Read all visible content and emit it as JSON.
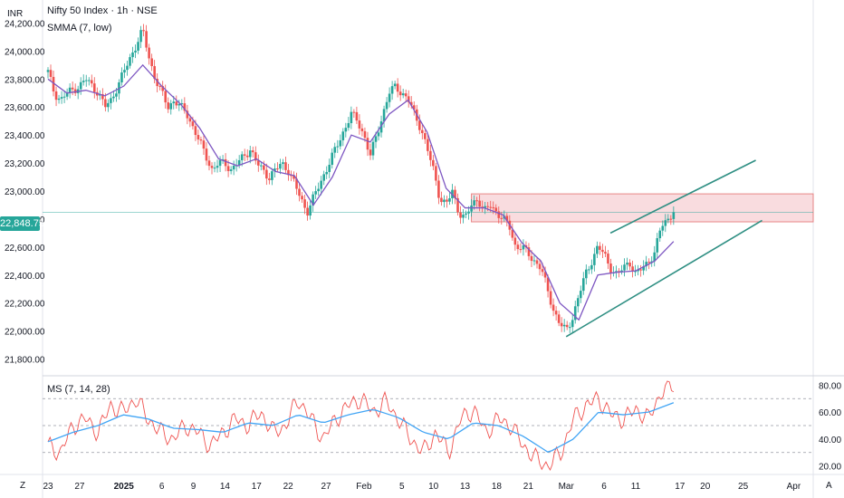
{
  "chart_title": "Nifty 50 Index · 1h · NSE",
  "indicator_label": "SMMA (7, low)",
  "oscillator_label": "MS (7, 14, 28)",
  "currency_label": "INR",
  "last_price_label": "22,848.75",
  "corner_left": "Z",
  "corner_right": "A",
  "colors": {
    "up": "#26a69a",
    "down": "#ef5350",
    "smma": "#7e57c2",
    "channel": "#2f8f83",
    "zone_fill": "#f8d7da",
    "zone_border": "#e57373",
    "osc_main": "#ef5350",
    "osc_signal": "#42a5f5",
    "price_line": "#26a69a"
  },
  "chart_data": [
    {
      "type": "candlestick",
      "title": "Nifty 50 Index · 1h · NSE",
      "ylabel": "INR",
      "ylim": [
        21700,
        24300
      ],
      "y_ticks": [
        "24,200.00",
        "24,000.00",
        "23,800.00",
        "23,600.00",
        "23,400.00",
        "23,200.00",
        "23,000.00",
        "22,800.00",
        "22,600.00",
        "22,400.00",
        "22,200.00",
        "22,000.00",
        "21,800.00"
      ],
      "y_tick_values": [
        24200,
        24000,
        23800,
        23600,
        23400,
        23200,
        23000,
        22800,
        22600,
        22400,
        22200,
        22000,
        21800
      ],
      "x_ticks": [
        "23",
        "27",
        "2025",
        "6",
        "9",
        "14",
        "17",
        "22",
        "27",
        "Feb",
        "5",
        "10",
        "13",
        "18",
        "21",
        "Mar",
        "6",
        "11",
        "17",
        "20",
        "25",
        "Apr"
      ],
      "x_tick_positions": [
        0,
        0.05,
        0.12,
        0.18,
        0.23,
        0.28,
        0.33,
        0.38,
        0.44,
        0.5,
        0.56,
        0.61,
        0.66,
        0.71,
        0.76,
        0.82,
        0.88,
        0.93,
        1.0,
        1.04,
        1.1,
        1.18
      ],
      "close_path": [
        [
          0,
          23850
        ],
        [
          0.01,
          23700
        ],
        [
          0.02,
          23650
        ],
        [
          0.03,
          23700
        ],
        [
          0.05,
          23750
        ],
        [
          0.06,
          23800
        ],
        [
          0.07,
          23750
        ],
        [
          0.08,
          23700
        ],
        [
          0.09,
          23600
        ],
        [
          0.1,
          23650
        ],
        [
          0.11,
          23750
        ],
        [
          0.12,
          23850
        ],
        [
          0.13,
          23950
        ],
        [
          0.14,
          24050
        ],
        [
          0.15,
          24150
        ],
        [
          0.16,
          23950
        ],
        [
          0.17,
          23800
        ],
        [
          0.18,
          23700
        ],
        [
          0.19,
          23600
        ],
        [
          0.2,
          23650
        ],
        [
          0.21,
          23600
        ],
        [
          0.22,
          23550
        ],
        [
          0.23,
          23450
        ],
        [
          0.24,
          23350
        ],
        [
          0.25,
          23250
        ],
        [
          0.26,
          23150
        ],
        [
          0.27,
          23200
        ],
        [
          0.28,
          23200
        ],
        [
          0.29,
          23150
        ],
        [
          0.3,
          23200
        ],
        [
          0.31,
          23250
        ],
        [
          0.32,
          23300
        ],
        [
          0.33,
          23200
        ],
        [
          0.34,
          23150
        ],
        [
          0.35,
          23100
        ],
        [
          0.36,
          23150
        ],
        [
          0.37,
          23200
        ],
        [
          0.38,
          23150
        ],
        [
          0.39,
          23050
        ],
        [
          0.4,
          22950
        ],
        [
          0.41,
          22850
        ],
        [
          0.42,
          22950
        ],
        [
          0.43,
          23050
        ],
        [
          0.44,
          23150
        ],
        [
          0.45,
          23250
        ],
        [
          0.46,
          23350
        ],
        [
          0.47,
          23450
        ],
        [
          0.48,
          23550
        ],
        [
          0.49,
          23500
        ],
        [
          0.5,
          23400
        ],
        [
          0.51,
          23250
        ],
        [
          0.52,
          23400
        ],
        [
          0.53,
          23550
        ],
        [
          0.54,
          23700
        ],
        [
          0.55,
          23750
        ],
        [
          0.56,
          23700
        ],
        [
          0.57,
          23650
        ],
        [
          0.58,
          23550
        ],
        [
          0.59,
          23450
        ],
        [
          0.6,
          23300
        ],
        [
          0.61,
          23150
        ],
        [
          0.62,
          22950
        ],
        [
          0.63,
          22900
        ],
        [
          0.64,
          23000
        ],
        [
          0.65,
          22850
        ],
        [
          0.66,
          22800
        ],
        [
          0.67,
          22900
        ],
        [
          0.68,
          22950
        ],
        [
          0.69,
          22850
        ],
        [
          0.7,
          22900
        ],
        [
          0.71,
          22850
        ],
        [
          0.72,
          22800
        ],
        [
          0.73,
          22750
        ],
        [
          0.74,
          22600
        ],
        [
          0.75,
          22600
        ],
        [
          0.76,
          22550
        ],
        [
          0.77,
          22500
        ],
        [
          0.78,
          22450
        ],
        [
          0.79,
          22300
        ],
        [
          0.8,
          22150
        ],
        [
          0.81,
          22050
        ],
        [
          0.82,
          22000
        ],
        [
          0.83,
          22100
        ],
        [
          0.84,
          22250
        ],
        [
          0.85,
          22400
        ],
        [
          0.86,
          22500
        ],
        [
          0.87,
          22600
        ],
        [
          0.88,
          22550
        ],
        [
          0.89,
          22450
        ],
        [
          0.9,
          22400
        ],
        [
          0.91,
          22450
        ],
        [
          0.92,
          22500
        ],
        [
          0.93,
          22400
        ],
        [
          0.94,
          22450
        ],
        [
          0.95,
          22500
        ],
        [
          0.96,
          22550
        ],
        [
          0.97,
          22750
        ],
        [
          0.98,
          22800
        ],
        [
          0.99,
          22848.75
        ]
      ],
      "smma_path": [
        [
          0,
          23800
        ],
        [
          0.03,
          23700
        ],
        [
          0.06,
          23720
        ],
        [
          0.09,
          23680
        ],
        [
          0.12,
          23750
        ],
        [
          0.15,
          23900
        ],
        [
          0.18,
          23750
        ],
        [
          0.21,
          23620
        ],
        [
          0.24,
          23450
        ],
        [
          0.27,
          23230
        ],
        [
          0.3,
          23180
        ],
        [
          0.33,
          23230
        ],
        [
          0.36,
          23140
        ],
        [
          0.39,
          23110
        ],
        [
          0.42,
          22900
        ],
        [
          0.45,
          23100
        ],
        [
          0.48,
          23400
        ],
        [
          0.51,
          23350
        ],
        [
          0.54,
          23550
        ],
        [
          0.57,
          23650
        ],
        [
          0.6,
          23420
        ],
        [
          0.63,
          23020
        ],
        [
          0.66,
          22880
        ],
        [
          0.69,
          22880
        ],
        [
          0.72,
          22830
        ],
        [
          0.75,
          22630
        ],
        [
          0.78,
          22500
        ],
        [
          0.81,
          22200
        ],
        [
          0.84,
          22080
        ],
        [
          0.87,
          22400
        ],
        [
          0.9,
          22420
        ],
        [
          0.93,
          22430
        ],
        [
          0.96,
          22500
        ],
        [
          0.99,
          22640
        ]
      ],
      "resistance_zone": {
        "y_low": 22780,
        "y_high": 22980,
        "x_start": 0.67
      },
      "channel_upper": [
        [
          0.89,
          22700
        ],
        [
          1.12,
          23220
        ]
      ],
      "channel_lower": [
        [
          0.82,
          21960
        ],
        [
          1.13,
          22790
        ]
      ],
      "last_price": 22848.75
    },
    {
      "type": "line",
      "title": "MS (7, 14, 28)",
      "ylim": [
        15,
        85
      ],
      "y_ticks": [
        "80.00",
        "60.00",
        "40.00",
        "20.00"
      ],
      "y_tick_values": [
        80,
        60,
        40,
        20
      ],
      "reference_lines": [
        70,
        50,
        30
      ],
      "series": [
        {
          "values_path": [
            [
              0,
              35
            ],
            [
              0.02,
              30
            ],
            [
              0.04,
              50
            ],
            [
              0.06,
              55
            ],
            [
              0.08,
              45
            ],
            [
              0.1,
              65
            ],
            [
              0.12,
              60
            ],
            [
              0.14,
              70
            ],
            [
              0.16,
              55
            ],
            [
              0.18,
              45
            ],
            [
              0.2,
              40
            ],
            [
              0.22,
              50
            ],
            [
              0.24,
              45
            ],
            [
              0.26,
              35
            ],
            [
              0.28,
              45
            ],
            [
              0.3,
              55
            ],
            [
              0.32,
              50
            ],
            [
              0.34,
              60
            ],
            [
              0.36,
              45
            ],
            [
              0.38,
              50
            ],
            [
              0.4,
              70
            ],
            [
              0.42,
              55
            ],
            [
              0.44,
              40
            ],
            [
              0.46,
              55
            ],
            [
              0.48,
              65
            ],
            [
              0.5,
              70
            ],
            [
              0.52,
              60
            ],
            [
              0.54,
              68
            ],
            [
              0.56,
              55
            ],
            [
              0.58,
              40
            ],
            [
              0.6,
              30
            ],
            [
              0.62,
              45
            ],
            [
              0.64,
              30
            ],
            [
              0.66,
              55
            ],
            [
              0.68,
              62
            ],
            [
              0.7,
              45
            ],
            [
              0.72,
              55
            ],
            [
              0.74,
              50
            ],
            [
              0.76,
              35
            ],
            [
              0.78,
              25
            ],
            [
              0.8,
              20
            ],
            [
              0.82,
              30
            ],
            [
              0.84,
              55
            ],
            [
              0.86,
              65
            ],
            [
              0.88,
              70
            ],
            [
              0.9,
              58
            ],
            [
              0.92,
              55
            ],
            [
              0.94,
              62
            ],
            [
              0.96,
              55
            ],
            [
              0.98,
              75
            ],
            [
              1.0,
              80
            ]
          ]
        },
        {
          "values_path": [
            [
              0,
              38
            ],
            [
              0.04,
              45
            ],
            [
              0.08,
              50
            ],
            [
              0.12,
              58
            ],
            [
              0.16,
              55
            ],
            [
              0.2,
              48
            ],
            [
              0.24,
              47
            ],
            [
              0.28,
              45
            ],
            [
              0.32,
              52
            ],
            [
              0.36,
              50
            ],
            [
              0.4,
              58
            ],
            [
              0.44,
              52
            ],
            [
              0.48,
              58
            ],
            [
              0.52,
              62
            ],
            [
              0.56,
              56
            ],
            [
              0.6,
              45
            ],
            [
              0.64,
              40
            ],
            [
              0.68,
              52
            ],
            [
              0.72,
              50
            ],
            [
              0.76,
              42
            ],
            [
              0.8,
              30
            ],
            [
              0.84,
              40
            ],
            [
              0.88,
              60
            ],
            [
              0.92,
              58
            ],
            [
              0.96,
              60
            ],
            [
              1.0,
              67
            ]
          ]
        }
      ]
    }
  ]
}
